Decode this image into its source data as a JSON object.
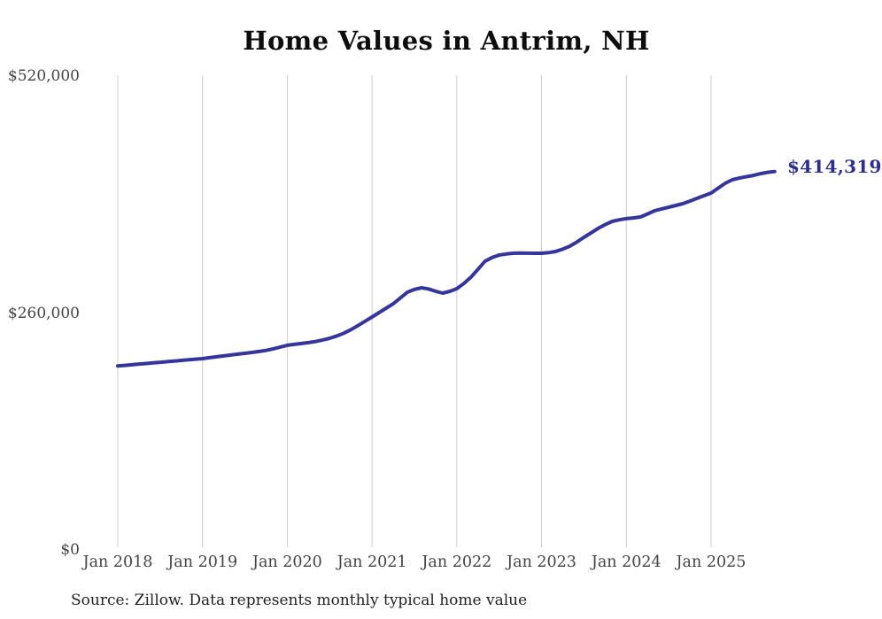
{
  "page": {
    "title": "Home Values in Antrim, NH",
    "source_note": "Source: Zillow. Data represents monthly typical home value"
  },
  "colors": {
    "line": "#35359c",
    "end_label": "#2e2e8e",
    "gridline": "#cccccc",
    "axis_text": "#444444",
    "title_text": "#0d0d0d",
    "source_text": "#222222",
    "background": "#ffffff"
  },
  "chart_data": {
    "type": "line",
    "title": "Home Values in Antrim, NH",
    "x_start": "2018-01",
    "x_end": "2025-10",
    "x_interval": "monthly",
    "x_tick_labels": [
      "Jan 2018",
      "Jan 2019",
      "Jan 2020",
      "Jan 2021",
      "Jan 2022",
      "Jan 2023",
      "Jan 2024",
      "Jan 2025"
    ],
    "y_ticks": [
      {
        "label": "$0",
        "value": 0
      },
      {
        "label": "$260,000",
        "value": 260000
      },
      {
        "label": "$520,000",
        "value": 520000
      }
    ],
    "ylim": [
      0,
      520000
    ],
    "grid": "vertical",
    "legend": "none",
    "series": [
      {
        "name": "Typical home value (USD)",
        "values": [
          201000,
          201600,
          202300,
          203000,
          203600,
          204300,
          205000,
          205700,
          206300,
          207000,
          207700,
          208400,
          209000,
          210000,
          211000,
          212000,
          213000,
          213900,
          214800,
          215800,
          216800,
          218000,
          219800,
          221700,
          223600,
          224600,
          225600,
          226600,
          227700,
          229500,
          231300,
          233900,
          236900,
          240800,
          245200,
          250000,
          254700,
          259500,
          264400,
          269200,
          275500,
          281900,
          285000,
          286700,
          285500,
          282900,
          280900,
          282800,
          285800,
          291500,
          298400,
          307000,
          315900,
          320000,
          322700,
          323900,
          324600,
          324800,
          324700,
          324600,
          324600,
          325300,
          326600,
          329200,
          332400,
          337000,
          342100,
          347000,
          351900,
          356000,
          359600,
          361400,
          362600,
          363400,
          364500,
          367800,
          371300,
          373300,
          375200,
          377100,
          379100,
          381900,
          384900,
          387800,
          390700,
          396100,
          401400,
          405300,
          407200,
          408700,
          410100,
          412000,
          413500,
          414319
        ]
      }
    ],
    "end_annotation": {
      "text": "$414,319",
      "value": 414319,
      "x": "2025-10"
    }
  }
}
